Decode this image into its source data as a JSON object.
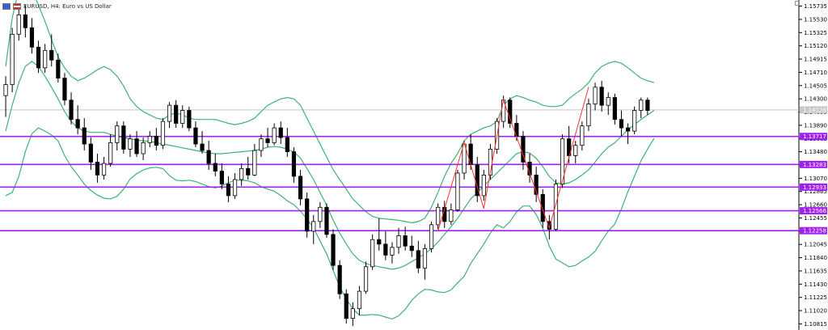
{
  "header": {
    "symbol": "EURUSD, H4: Euro vs US Dollar"
  },
  "chart_data": {
    "type": "candlestick",
    "ylim": [
      1.1072,
      1.1583
    ],
    "price_ticks": [
      "1.15735",
      "1.15530",
      "1.15325",
      "1.15120",
      "1.14915",
      "1.14710",
      "1.14505",
      "1.14300",
      "1.14095",
      "1.13890",
      "1.13685",
      "1.13480",
      "1.13275",
      "1.13070",
      "1.12865",
      "1.12660",
      "1.12455",
      "1.12250",
      "1.12045",
      "1.11840",
      "1.11635",
      "1.11430",
      "1.11225",
      "1.11020",
      "1.10815"
    ],
    "current_price": {
      "label": "1.14128",
      "value": 1.14128
    },
    "levels": [
      {
        "label": "1.13717",
        "value": 1.13717
      },
      {
        "label": "1.13283",
        "value": 1.13283
      },
      {
        "label": "1.12933",
        "value": 1.12933
      },
      {
        "label": "1.12566",
        "value": 1.12566
      },
      {
        "label": "1.12258",
        "value": 1.12258
      }
    ],
    "candles": [
      [
        1.1435,
        1.1465,
        1.1402,
        1.1452
      ],
      [
        1.1452,
        1.154,
        1.144,
        1.153
      ],
      [
        1.153,
        1.1575,
        1.152,
        1.156
      ],
      [
        1.156,
        1.1575,
        1.1525,
        1.154
      ],
      [
        1.154,
        1.1555,
        1.15,
        1.151
      ],
      [
        1.151,
        1.152,
        1.147,
        1.1478
      ],
      [
        1.1478,
        1.1515,
        1.147,
        1.1505
      ],
      [
        1.1505,
        1.153,
        1.148,
        1.149
      ],
      [
        1.149,
        1.15,
        1.1455,
        1.1462
      ],
      [
        1.1462,
        1.147,
        1.142,
        1.1428
      ],
      [
        1.1428,
        1.144,
        1.139,
        1.1398
      ],
      [
        1.1398,
        1.142,
        1.1375,
        1.1385
      ],
      [
        1.1385,
        1.14,
        1.135,
        1.136
      ],
      [
        1.136,
        1.137,
        1.132,
        1.1332
      ],
      [
        1.1332,
        1.1345,
        1.13,
        1.1312
      ],
      [
        1.1312,
        1.134,
        1.1305,
        1.133
      ],
      [
        1.133,
        1.1375,
        1.1325,
        1.1362
      ],
      [
        1.1362,
        1.1395,
        1.135,
        1.1388
      ],
      [
        1.1388,
        1.1395,
        1.1345,
        1.1352
      ],
      [
        1.1352,
        1.1375,
        1.134,
        1.1368
      ],
      [
        1.1368,
        1.138,
        1.134,
        1.1345
      ],
      [
        1.1345,
        1.137,
        1.1335,
        1.1362
      ],
      [
        1.1362,
        1.138,
        1.1355,
        1.1372
      ],
      [
        1.1372,
        1.1385,
        1.135,
        1.1358
      ],
      [
        1.1358,
        1.14,
        1.1352,
        1.1395
      ],
      [
        1.1395,
        1.1425,
        1.1385,
        1.142
      ],
      [
        1.142,
        1.1428,
        1.1385,
        1.1392
      ],
      [
        1.1392,
        1.142,
        1.1385,
        1.1412
      ],
      [
        1.1412,
        1.1418,
        1.138,
        1.1385
      ],
      [
        1.1385,
        1.1395,
        1.1355,
        1.136
      ],
      [
        1.136,
        1.138,
        1.1345,
        1.135
      ],
      [
        1.135,
        1.1365,
        1.132,
        1.133
      ],
      [
        1.133,
        1.1345,
        1.131,
        1.1318
      ],
      [
        1.1318,
        1.133,
        1.129,
        1.1298
      ],
      [
        1.1298,
        1.131,
        1.127,
        1.128
      ],
      [
        1.128,
        1.1315,
        1.1275,
        1.1305
      ],
      [
        1.1305,
        1.133,
        1.1295,
        1.1322
      ],
      [
        1.1322,
        1.134,
        1.1305,
        1.1312
      ],
      [
        1.1312,
        1.136,
        1.131,
        1.135
      ],
      [
        1.135,
        1.1375,
        1.134,
        1.1368
      ],
      [
        1.1368,
        1.1385,
        1.1355,
        1.1362
      ],
      [
        1.1362,
        1.1392,
        1.1358,
        1.1385
      ],
      [
        1.1385,
        1.1395,
        1.136,
        1.137
      ],
      [
        1.137,
        1.1385,
        1.134,
        1.1348
      ],
      [
        1.1348,
        1.1355,
        1.13,
        1.131
      ],
      [
        1.131,
        1.132,
        1.1265,
        1.1275
      ],
      [
        1.1275,
        1.1285,
        1.1215,
        1.1225
      ],
      [
        1.1225,
        1.125,
        1.1205,
        1.124
      ],
      [
        1.124,
        1.127,
        1.123,
        1.1262
      ],
      [
        1.1262,
        1.1268,
        1.1215,
        1.122
      ],
      [
        1.122,
        1.1228,
        1.1165,
        1.1172
      ],
      [
        1.1172,
        1.118,
        1.112,
        1.1128
      ],
      [
        1.1128,
        1.1135,
        1.1082,
        1.109
      ],
      [
        1.109,
        1.1115,
        1.1078,
        1.1105
      ],
      [
        1.1105,
        1.114,
        1.1095,
        1.1132
      ],
      [
        1.1132,
        1.1178,
        1.1128,
        1.117
      ],
      [
        1.117,
        1.122,
        1.1165,
        1.1212
      ],
      [
        1.1212,
        1.1245,
        1.1195,
        1.1205
      ],
      [
        1.1205,
        1.1225,
        1.118,
        1.1188
      ],
      [
        1.1188,
        1.1208,
        1.1175,
        1.12
      ],
      [
        1.12,
        1.123,
        1.119,
        1.1218
      ],
      [
        1.1218,
        1.1232,
        1.1195,
        1.1202
      ],
      [
        1.1202,
        1.1218,
        1.1185,
        1.1195
      ],
      [
        1.1195,
        1.121,
        1.116,
        1.1168
      ],
      [
        1.1168,
        1.1205,
        1.115,
        1.1198
      ],
      [
        1.1198,
        1.124,
        1.1192,
        1.1235
      ],
      [
        1.1235,
        1.1268,
        1.1228,
        1.1262
      ],
      [
        1.1262,
        1.1272,
        1.123,
        1.124
      ],
      [
        1.124,
        1.1268,
        1.1235,
        1.1258
      ],
      [
        1.1258,
        1.132,
        1.1255,
        1.1315
      ],
      [
        1.1315,
        1.1365,
        1.1305,
        1.136
      ],
      [
        1.136,
        1.1375,
        1.132,
        1.1328
      ],
      [
        1.1328,
        1.134,
        1.127,
        1.128
      ],
      [
        1.128,
        1.132,
        1.1272,
        1.1312
      ],
      [
        1.1312,
        1.136,
        1.1305,
        1.1352
      ],
      [
        1.1352,
        1.14,
        1.1345,
        1.1395
      ],
      [
        1.1395,
        1.1435,
        1.1385,
        1.1428
      ],
      [
        1.1428,
        1.1432,
        1.1385,
        1.1392
      ],
      [
        1.1392,
        1.1405,
        1.1365,
        1.1372
      ],
      [
        1.1372,
        1.138,
        1.132,
        1.1332
      ],
      [
        1.1332,
        1.1345,
        1.13,
        1.1312
      ],
      [
        1.1312,
        1.1325,
        1.127,
        1.1282
      ],
      [
        1.1282,
        1.129,
        1.123,
        1.124
      ],
      [
        1.124,
        1.125,
        1.1212,
        1.1228
      ],
      [
        1.1228,
        1.1305,
        1.1225,
        1.1298
      ],
      [
        1.1298,
        1.1375,
        1.1292,
        1.1368
      ],
      [
        1.1368,
        1.1388,
        1.133,
        1.1342
      ],
      [
        1.1342,
        1.1365,
        1.133,
        1.1358
      ],
      [
        1.1358,
        1.1395,
        1.135,
        1.1388
      ],
      [
        1.1388,
        1.143,
        1.138,
        1.1422
      ],
      [
        1.1422,
        1.1455,
        1.1412,
        1.1448
      ],
      [
        1.1448,
        1.1458,
        1.141,
        1.142
      ],
      [
        1.142,
        1.144,
        1.1405,
        1.1432
      ],
      [
        1.1432,
        1.1438,
        1.139,
        1.1398
      ],
      [
        1.1398,
        1.1412,
        1.1372,
        1.1385
      ],
      [
        1.1385,
        1.1392,
        1.136,
        1.138
      ],
      [
        1.138,
        1.1418,
        1.1375,
        1.1412
      ],
      [
        1.1412,
        1.1432,
        1.14,
        1.1428
      ],
      [
        1.1428,
        1.1432,
        1.1405,
        1.1412
      ]
    ],
    "bands": {
      "color": "#3cb371",
      "upper": [
        1.148,
        1.1555,
        1.16,
        1.1612,
        1.16,
        1.1575,
        1.155,
        1.1522,
        1.1495,
        1.1478,
        1.1465,
        1.1458,
        1.1462,
        1.1468,
        1.1475,
        1.148,
        1.1475,
        1.1465,
        1.145,
        1.143,
        1.1418,
        1.141,
        1.1405,
        1.14,
        1.1398,
        1.1405,
        1.1408,
        1.1405,
        1.14,
        1.1398,
        1.1398,
        1.1398,
        1.1398,
        1.1395,
        1.1392,
        1.139,
        1.1392,
        1.1395,
        1.14,
        1.141,
        1.142,
        1.1425,
        1.143,
        1.1432,
        1.143,
        1.142,
        1.14,
        1.138,
        1.136,
        1.134,
        1.132,
        1.1305,
        1.129,
        1.1275,
        1.1265,
        1.1255,
        1.1248,
        1.1245,
        1.1244,
        1.1243,
        1.1242,
        1.124,
        1.1238,
        1.124,
        1.1245,
        1.1262,
        1.1285,
        1.131,
        1.133,
        1.1345,
        1.1365,
        1.1375,
        1.138,
        1.1385,
        1.1388,
        1.1395,
        1.142,
        1.143,
        1.1435,
        1.1432,
        1.1428,
        1.1425,
        1.142,
        1.1418,
        1.1418,
        1.142,
        1.143,
        1.1438,
        1.1445,
        1.1455,
        1.147,
        1.148,
        1.1485,
        1.1488,
        1.1485,
        1.1478,
        1.147,
        1.1462,
        1.1458,
        1.1455
      ],
      "middle": [
        1.138,
        1.142,
        1.1455,
        1.148,
        1.1488,
        1.148,
        1.1465,
        1.1448,
        1.143,
        1.141,
        1.1395,
        1.1385,
        1.138,
        1.1378,
        1.1378,
        1.1378,
        1.1375,
        1.1372,
        1.137,
        1.1368,
        1.1366,
        1.1365,
        1.1364,
        1.1362,
        1.136,
        1.1358,
        1.1356,
        1.1354,
        1.1352,
        1.135,
        1.1348,
        1.1346,
        1.1345,
        1.1345,
        1.1346,
        1.1347,
        1.1348,
        1.1349,
        1.135,
        1.1352,
        1.1355,
        1.1356,
        1.1355,
        1.1352,
        1.1348,
        1.1338,
        1.1322,
        1.1305,
        1.1285,
        1.1265,
        1.1242,
        1.1222,
        1.1205,
        1.119,
        1.118,
        1.1175,
        1.1172,
        1.117,
        1.1168,
        1.1166,
        1.1168,
        1.1172,
        1.1178,
        1.1184,
        1.119,
        1.1198,
        1.1208,
        1.122,
        1.1232,
        1.1245,
        1.126,
        1.1275,
        1.1285,
        1.1295,
        1.1305,
        1.1315,
        1.1325,
        1.1335,
        1.1345,
        1.1348,
        1.1346,
        1.1338,
        1.1325,
        1.131,
        1.13,
        1.1298,
        1.13,
        1.1305,
        1.1312,
        1.132,
        1.1332,
        1.1345,
        1.1355,
        1.1362,
        1.1372,
        1.1382,
        1.139,
        1.1398,
        1.1405,
        1.1412
      ],
      "lower": [
        1.128,
        1.1285,
        1.131,
        1.1348,
        1.1376,
        1.1385,
        1.138,
        1.1374,
        1.1365,
        1.1342,
        1.1325,
        1.1312,
        1.1298,
        1.1288,
        1.1281,
        1.1276,
        1.1275,
        1.1279,
        1.129,
        1.1306,
        1.1314,
        1.132,
        1.1323,
        1.1324,
        1.1322,
        1.1311,
        1.1304,
        1.1303,
        1.1304,
        1.1302,
        1.1298,
        1.1294,
        1.1292,
        1.1295,
        1.13,
        1.1304,
        1.1304,
        1.1303,
        1.13,
        1.1294,
        1.129,
        1.1287,
        1.128,
        1.1272,
        1.1266,
        1.1256,
        1.1244,
        1.123,
        1.121,
        1.119,
        1.1164,
        1.1139,
        1.112,
        1.1105,
        1.1095,
        1.1095,
        1.1096,
        1.1095,
        1.1092,
        1.1089,
        1.1094,
        1.1104,
        1.1118,
        1.1128,
        1.1135,
        1.1134,
        1.1131,
        1.113,
        1.1134,
        1.1145,
        1.1155,
        1.1175,
        1.119,
        1.1205,
        1.1222,
        1.1235,
        1.123,
        1.124,
        1.1255,
        1.1264,
        1.1264,
        1.1251,
        1.123,
        1.1202,
        1.1182,
        1.1176,
        1.117,
        1.1172,
        1.1179,
        1.1185,
        1.1194,
        1.121,
        1.1225,
        1.1236,
        1.1259,
        1.1286,
        1.131,
        1.1334,
        1.1352,
        1.1369
      ]
    },
    "zigzag": {
      "color": "#ff3030",
      "points": [
        [
          66,
          1.1225
        ],
        [
          70,
          1.1362
        ],
        [
          73,
          1.126
        ],
        [
          76,
          1.1428
        ],
        [
          83,
          1.123
        ],
        [
          89,
          1.1448
        ]
      ]
    }
  }
}
